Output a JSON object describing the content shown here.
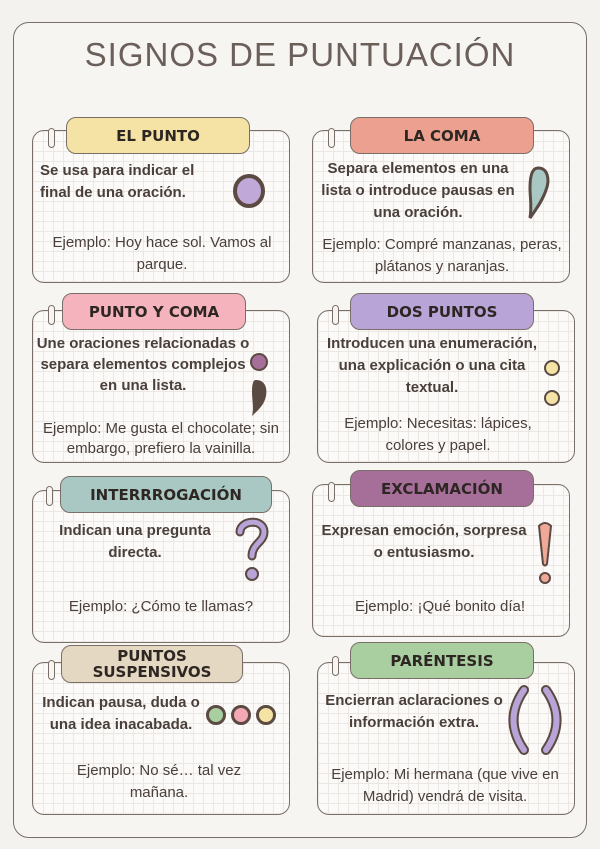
{
  "title": "SIGNOS DE PUNTUACIÓN",
  "cards": [
    {
      "name": "EL PUNTO",
      "description": "Se usa para indicar el final de una oración.",
      "example": "Ejemplo: Hoy hace sol. Vamos al parque.",
      "color": "#f4e3a4",
      "icon": "period-icon"
    },
    {
      "name": "LA COMA",
      "description": "Separa elementos en una lista o introduce pausas en una oración.",
      "example": "Ejemplo: Compré manzanas, peras, plátanos y naranjas.",
      "color": "#eca08f",
      "icon": "comma-icon"
    },
    {
      "name": "PUNTO Y COMA",
      "description": "Une oraciones relacionadas o separa elementos complejos en una lista.",
      "example": "Ejemplo: Me gusta el chocolate; sin embargo, prefiero la vainilla.",
      "color": "#f4b3bd",
      "icon": "semicolon-icon"
    },
    {
      "name": "DOS PUNTOS",
      "description": "Introducen una enumeración, una explicación o una cita textual.",
      "example": "Ejemplo: Necesitas: lápices, colores y papel.",
      "color": "#b8a4d6",
      "icon": "colon-icon"
    },
    {
      "name": "INTERRROGACIÓN",
      "description": "Indican una pregunta directa.",
      "example": "Ejemplo: ¿Cómo te llamas?",
      "color": "#a9c8c3",
      "icon": "question-mark-icon"
    },
    {
      "name": "EXCLAMACIÓN",
      "description": "Expresan emoción, sorpresa o entusiasmo.",
      "example": "Ejemplo: ¡Qué bonito día!",
      "color": "#a66f9a",
      "icon": "exclamation-mark-icon"
    },
    {
      "name": "PUNTOS SUSPENSIVOS",
      "description": "Indican pausa, duda o una idea inacabada.",
      "example": "Ejemplo: No sé… tal vez mañana.",
      "color": "#e4d8c3",
      "icon": "ellipsis-icon"
    },
    {
      "name": "PARÉNTESIS",
      "description": "Encierran aclaraciones o información extra.",
      "example": "Ejemplo: Mi hermana (que vive en Madrid) vendrá de visita.",
      "color": "#a9cfa0",
      "icon": "parentheses-icon"
    }
  ]
}
